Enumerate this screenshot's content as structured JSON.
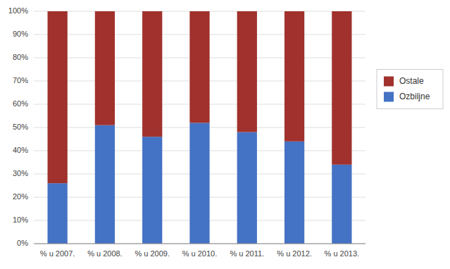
{
  "chart_data": {
    "type": "bar",
    "stacked": true,
    "categories": [
      "% u 2007.",
      "% u 2008.",
      "% u 2009.",
      "% u 2010.",
      "% u 2011.",
      "% u 2012.",
      "% u 2013."
    ],
    "series": [
      {
        "name": "Ozbiljne",
        "color": "#4472C4",
        "values": [
          26,
          51,
          46,
          52,
          48,
          44,
          34
        ]
      },
      {
        "name": "Ostale",
        "color": "#A0312C",
        "values": [
          74,
          49,
          54,
          48,
          52,
          56,
          66
        ]
      }
    ],
    "ylim": [
      0,
      100
    ],
    "yticks": [
      {
        "value": 0,
        "label": "0%"
      },
      {
        "value": 10,
        "label": "10%"
      },
      {
        "value": 20,
        "label": "20%"
      },
      {
        "value": 30,
        "label": "30%"
      },
      {
        "value": 40,
        "label": "40%"
      },
      {
        "value": 50,
        "label": "50%"
      },
      {
        "value": 60,
        "label": "60%"
      },
      {
        "value": 70,
        "label": "70%"
      },
      {
        "value": 80,
        "label": "80%"
      },
      {
        "value": 90,
        "label": "90%"
      },
      {
        "value": 100,
        "label": "100%"
      }
    ],
    "grid": true,
    "legend": "right"
  }
}
